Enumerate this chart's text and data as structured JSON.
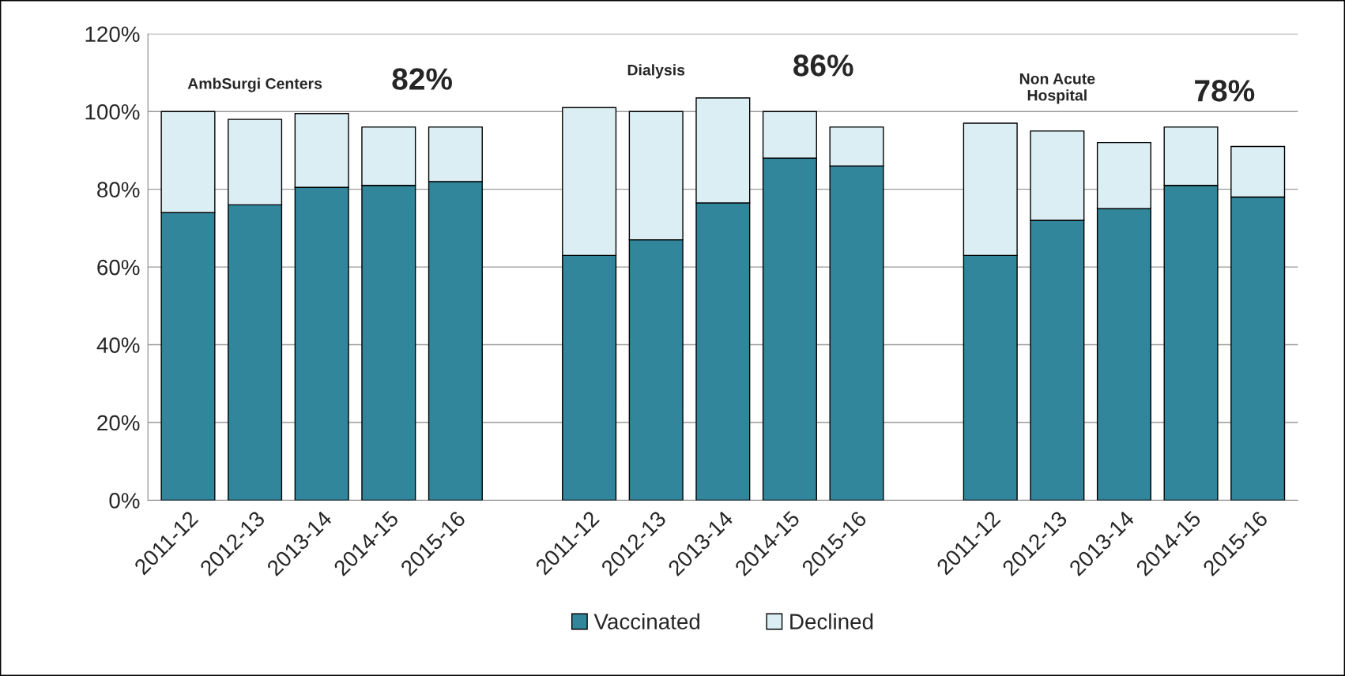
{
  "chart_data": {
    "type": "bar",
    "stacked": true,
    "categories": [
      "2011-12",
      "2012-13",
      "2013-14",
      "2014-15",
      "2015-16",
      null,
      "2011-12",
      "2012-13",
      "2013-14",
      "2014-15",
      "2015-16",
      null,
      "2011-12",
      "2012-13",
      "2013-14",
      "2014-15",
      "2015-16"
    ],
    "series": [
      {
        "name": "Vaccinated",
        "color": "#31869b",
        "values": [
          74,
          76,
          80.5,
          81,
          82,
          null,
          63,
          67,
          76.5,
          88,
          86,
          null,
          63,
          72,
          75,
          81,
          78
        ]
      },
      {
        "name": "Declined",
        "color": "#dbeef3",
        "values": [
          26,
          22,
          19,
          15,
          14,
          null,
          38,
          33,
          27,
          12,
          10,
          null,
          34,
          23,
          17,
          15,
          13
        ]
      }
    ],
    "ylim": [
      0,
      120
    ],
    "yticks": [
      {
        "value": 0,
        "label": "0%"
      },
      {
        "value": 20,
        "label": "20%"
      },
      {
        "value": 40,
        "label": "40%"
      },
      {
        "value": 60,
        "label": "60%"
      },
      {
        "value": 80,
        "label": "80%"
      },
      {
        "value": 100,
        "label": "100%"
      },
      {
        "value": 120,
        "label": "120%"
      }
    ],
    "grid": "y",
    "legend": "bottom",
    "annotations": [
      "AmbSurgi Centers",
      "82%",
      "Dialysis",
      "86%",
      "Non Acute\nHospital",
      "78%"
    ]
  }
}
